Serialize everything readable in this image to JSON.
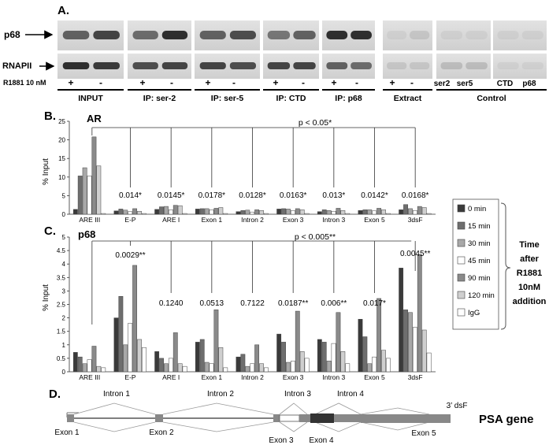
{
  "panels": {
    "A": "A.",
    "B": "B.",
    "C": "C.",
    "D": "D."
  },
  "panel_a": {
    "row_labels": [
      "p68",
      "RNAPII"
    ],
    "treatment_label": "R1881 10 nM",
    "signs": [
      "+",
      "-",
      "+",
      "-",
      "+",
      "-",
      "+",
      "-",
      "+",
      "-",
      "+",
      "-"
    ],
    "groups": [
      "INPUT",
      "IP: ser-2",
      "IP: ser-5",
      "IP: CTD",
      "IP: p68",
      "Extract",
      "Control"
    ],
    "control_lanes": [
      "ser2",
      "ser5",
      "CTD",
      "p68"
    ]
  },
  "legend": {
    "items": [
      "0 min",
      "15 min",
      "30 min",
      "45 min",
      "90 min",
      "120 min",
      "IgG"
    ],
    "colors": [
      "#3a3a3a",
      "#6e6e6e",
      "#a8a8a8",
      "#ffffff",
      "#8a8a8a",
      "#cfcfcf",
      "#ffffff"
    ],
    "note": [
      "Time",
      "after",
      "R1881",
      "10nM",
      "addition"
    ]
  },
  "chart_data": [
    {
      "type": "bar",
      "title": "AR",
      "ylabel": "% Input",
      "ylim": [
        0,
        25
      ],
      "yticks": [
        "0",
        "5",
        "10",
        "15",
        "20",
        "25"
      ],
      "categories": [
        "ARE III",
        "E-P",
        "ARE I",
        "Exon 1",
        "Intron 2",
        "Exon 3",
        "Intron 3",
        "Exon 5",
        "3dsF"
      ],
      "series": [
        {
          "name": "0 min",
          "values": [
            1.3,
            0.9,
            1.3,
            1.4,
            0.7,
            1.4,
            0.7,
            1.0,
            1.2
          ]
        },
        {
          "name": "15 min",
          "values": [
            10.3,
            1.4,
            2.0,
            1.5,
            1.0,
            1.5,
            1.2,
            1.2,
            2.6
          ]
        },
        {
          "name": "30 min",
          "values": [
            12.5,
            1.1,
            2.1,
            1.5,
            1.1,
            1.4,
            1.0,
            1.2,
            1.5
          ]
        },
        {
          "name": "45 min",
          "values": [
            10.3,
            0.7,
            1.2,
            1.2,
            0.6,
            1.0,
            0.8,
            0.9,
            1.0
          ]
        },
        {
          "name": "90 min",
          "values": [
            20.8,
            1.5,
            2.4,
            1.6,
            1.2,
            1.5,
            1.6,
            1.6,
            2.1
          ]
        },
        {
          "name": "120 min",
          "values": [
            13.0,
            0.8,
            2.3,
            1.8,
            1.0,
            1.2,
            1.0,
            1.2,
            1.8
          ]
        },
        {
          "name": "IgG",
          "values": [
            0.2,
            0.2,
            0.2,
            0.2,
            0.2,
            0.2,
            0.2,
            0.2,
            0.2
          ]
        }
      ],
      "pvalues": [
        "",
        "0.014*",
        "0.0145*",
        "0.0178*",
        "0.0128*",
        "0.0163*",
        "0.013*",
        "0.0142*",
        "0.0168*"
      ],
      "bracket_label": "p < 0.05*"
    },
    {
      "type": "bar",
      "title": "p68",
      "ylabel": "% Input",
      "ylim": [
        0,
        5
      ],
      "yticks": [
        "0",
        "0.5",
        "1",
        "1.5",
        "2",
        "2.5",
        "3",
        "3.5",
        "4",
        "4.5",
        "5"
      ],
      "categories": [
        "ARE III",
        "E-P",
        "ARE I",
        "Exon 1",
        "Intron 2",
        "Exon 3",
        "Intron 3",
        "Exon 5",
        "3dsF"
      ],
      "series": [
        {
          "name": "0 min",
          "values": [
            0.72,
            2.0,
            0.75,
            1.1,
            0.55,
            1.4,
            1.2,
            1.95,
            3.85
          ]
        },
        {
          "name": "15 min",
          "values": [
            0.55,
            2.8,
            0.5,
            1.2,
            0.65,
            1.1,
            1.1,
            1.3,
            2.3
          ]
        },
        {
          "name": "30 min",
          "values": [
            0.3,
            1.0,
            0.3,
            0.35,
            0.2,
            0.35,
            0.4,
            0.3,
            2.2
          ]
        },
        {
          "name": "45 min",
          "values": [
            0.45,
            1.8,
            0.5,
            0.3,
            0.3,
            0.4,
            1.05,
            0.55,
            1.65
          ]
        },
        {
          "name": "90 min",
          "values": [
            0.95,
            3.95,
            1.45,
            2.3,
            1.0,
            2.25,
            2.2,
            2.72,
            4.35
          ]
        },
        {
          "name": "120 min",
          "values": [
            0.2,
            1.2,
            0.3,
            0.9,
            0.3,
            0.75,
            0.75,
            0.8,
            1.55
          ]
        },
        {
          "name": "IgG",
          "values": [
            0.15,
            0.9,
            0.2,
            0.15,
            0.15,
            0.5,
            0.3,
            0.5,
            0.7
          ]
        }
      ],
      "pvalues": [
        "",
        "0.0029**",
        "0.1240",
        "0.0513",
        "0.7122",
        "0.0187**",
        "0.006**",
        "0.017*",
        "0.0045**"
      ],
      "bracket_label": "p < 0.005**"
    }
  ],
  "gene": {
    "name": "PSA gene",
    "tail_label": "3’ dsF",
    "introns": [
      "Intron 1",
      "Intron 2",
      "Intron 3",
      "Intron 4"
    ],
    "exons": [
      "Exon 1",
      "Exon 2",
      "Exon 3",
      "Exon 4",
      "Exon 5"
    ]
  }
}
